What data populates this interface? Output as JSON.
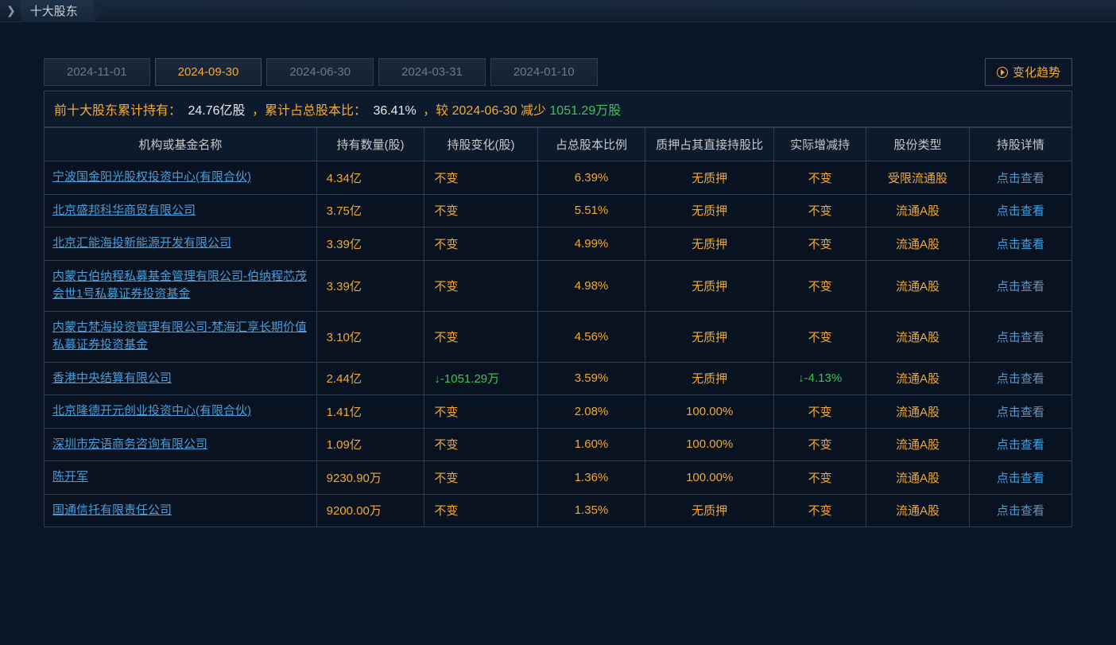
{
  "page": {
    "title": "十大股东"
  },
  "tabs": {
    "dates": [
      "2024-11-01",
      "2024-09-30",
      "2024-06-30",
      "2024-03-31",
      "2024-01-10"
    ],
    "active_index": 1
  },
  "trend_button": {
    "label": "变化趋势"
  },
  "summary": {
    "label_prefix": "前十大股东累计持有：",
    "total_holding": "24.76亿股",
    "label_mid1": "，累计占总股本比：",
    "total_pct": "36.41%",
    "label_mid2": "，较",
    "compare_date": "2024-06-30",
    "label_mid3": "减少",
    "change_amount": "1051.29万股"
  },
  "columns": {
    "name": "机构或基金名称",
    "qty": "持有数量(股)",
    "change": "持股变化(股)",
    "pct": "占总股本比例",
    "pledge": "质押占其直接持股比",
    "real_change": "实际增减持",
    "share_type": "股份类型",
    "detail": "持股详情"
  },
  "labels": {
    "view_detail": "点击查看",
    "no_change": "不变",
    "no_pledge": "无质押"
  },
  "rows": [
    {
      "name": "宁波国金阳光股权投资中心(有限合伙)",
      "qty": "4.34亿",
      "change": "不变",
      "pct": "6.39%",
      "pledge": "无质押",
      "real": "不变",
      "type": "受限流通股"
    },
    {
      "name": "北京盛邦科华商贸有限公司",
      "qty": "3.75亿",
      "change": "不变",
      "pct": "5.51%",
      "pledge": "无质押",
      "real": "不变",
      "type": "流通A股"
    },
    {
      "name": "北京汇能海投新能源开发有限公司",
      "qty": "3.39亿",
      "change": "不变",
      "pct": "4.99%",
      "pledge": "无质押",
      "real": "不变",
      "type": "流通A股"
    },
    {
      "name": "内蒙古伯纳程私募基金管理有限公司-伯纳程芯茂会世1号私募证券投资基金",
      "qty": "3.39亿",
      "change": "不变",
      "pct": "4.98%",
      "pledge": "无质押",
      "real": "不变",
      "type": "流通A股"
    },
    {
      "name": "内蒙古梵海投资管理有限公司-梵海汇享长期价值私募证券投资基金",
      "qty": "3.10亿",
      "change": "不变",
      "pct": "4.56%",
      "pledge": "无质押",
      "real": "不变",
      "type": "流通A股"
    },
    {
      "name": "香港中央结算有限公司",
      "qty": "2.44亿",
      "change": "-1051.29万",
      "change_dir": "down",
      "pct": "3.59%",
      "pledge": "无质押",
      "real": "-4.13%",
      "real_dir": "down",
      "type": "流通A股"
    },
    {
      "name": "北京隆德开元创业投资中心(有限合伙)",
      "qty": "1.41亿",
      "change": "不变",
      "pct": "2.08%",
      "pledge": "100.00%",
      "real": "不变",
      "type": "流通A股"
    },
    {
      "name": "深圳市宏语商务咨询有限公司",
      "qty": "1.09亿",
      "change": "不变",
      "pct": "1.60%",
      "pledge": "100.00%",
      "real": "不变",
      "type": "流通A股"
    },
    {
      "name": "陈开军",
      "qty": "9230.90万",
      "change": "不变",
      "pct": "1.36%",
      "pledge": "100.00%",
      "real": "不变",
      "type": "流通A股"
    },
    {
      "name": "国通信托有限责任公司",
      "qty": "9200.00万",
      "change": "不变",
      "pct": "1.35%",
      "pledge": "无质押",
      "real": "不变",
      "type": "流通A股"
    }
  ],
  "colors": {
    "background": "#0a1628",
    "cell_bg": "#081220",
    "header_bg": "#0d1a2b",
    "border": "#2a3f56",
    "text_default": "#b0b0b0",
    "text_header": "#c8c8c8",
    "orange": "#f4a933",
    "link": "#4a9dd8",
    "green": "#3dc25a",
    "white": "#e8e8e8"
  }
}
